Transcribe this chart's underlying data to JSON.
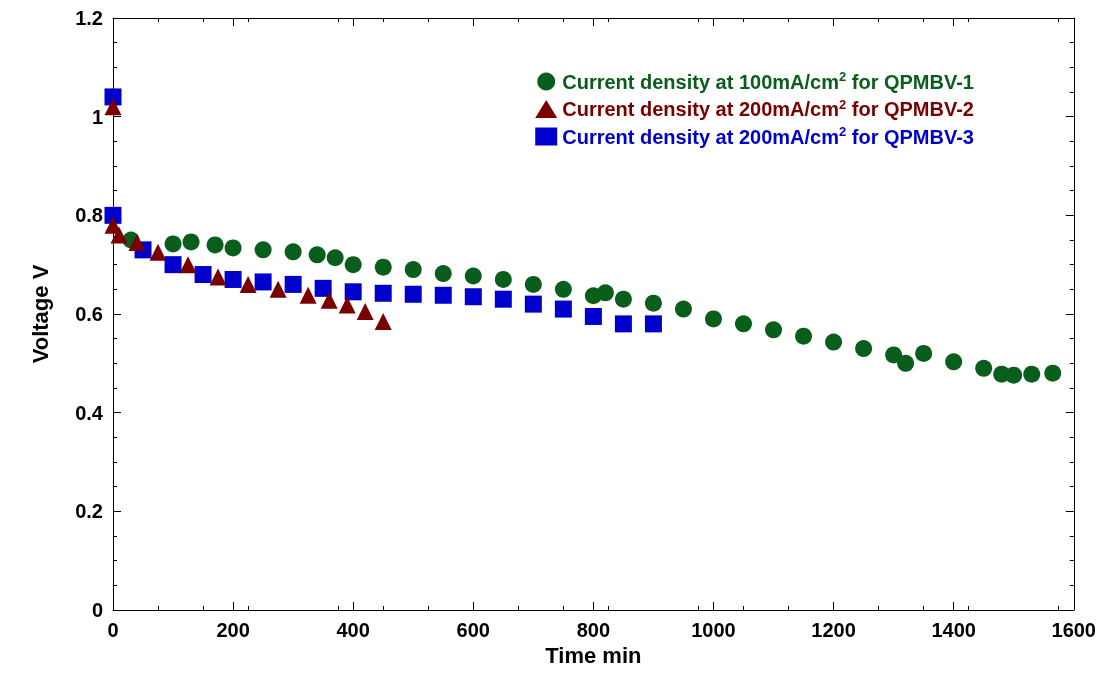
{
  "chart_data": {
    "type": "scatter",
    "xlabel": "Time min",
    "ylabel": "Voltage V",
    "xlim": [
      0,
      1600
    ],
    "ylim": [
      0,
      1.2
    ],
    "xticks": [
      0,
      200,
      400,
      600,
      800,
      1000,
      1200,
      1400,
      1600
    ],
    "yticks": [
      0,
      0.2,
      0.4,
      0.6,
      0.8,
      1,
      1.2
    ],
    "grid": false,
    "legend": "top right",
    "series": [
      {
        "name": "Current density at 100mA/cm$^{2}$ for QPMBV-1",
        "color": "#0a5e1c",
        "marker": "circle",
        "x": [
          30,
          100,
          130,
          170,
          200,
          250,
          300,
          340,
          370,
          400,
          450,
          500,
          550,
          600,
          650,
          700,
          750,
          800,
          820,
          850,
          900,
          950,
          1000,
          1050,
          1100,
          1150,
          1200,
          1250,
          1300,
          1320,
          1350,
          1400,
          1450,
          1480,
          1500,
          1530,
          1565
        ],
        "values": [
          0.75,
          0.742,
          0.746,
          0.74,
          0.734,
          0.73,
          0.726,
          0.72,
          0.714,
          0.7,
          0.695,
          0.69,
          0.682,
          0.677,
          0.67,
          0.66,
          0.65,
          0.637,
          0.643,
          0.63,
          0.622,
          0.61,
          0.59,
          0.58,
          0.568,
          0.555,
          0.543,
          0.53,
          0.517,
          0.5,
          0.52,
          0.503,
          0.49,
          0.478,
          0.476,
          0.478,
          0.48
        ]
      },
      {
        "name": "Current density at 200mA/cm$^{2}$ for QPMBV-2",
        "color": "#7a0000",
        "marker": "triangle",
        "x": [
          0,
          0,
          10,
          40,
          75,
          125,
          175,
          225,
          275,
          325,
          360,
          390,
          420,
          450
        ],
        "values": [
          1.02,
          0.78,
          0.76,
          0.745,
          0.725,
          0.7,
          0.675,
          0.66,
          0.65,
          0.638,
          0.628,
          0.618,
          0.605,
          0.585
        ]
      },
      {
        "name": "Current density at 200mA/cm$^{2}$ for QPMBV-3",
        "color": "#0000cc",
        "marker": "square",
        "x": [
          0,
          0,
          50,
          100,
          150,
          200,
          250,
          300,
          350,
          400,
          450,
          500,
          550,
          600,
          650,
          700,
          750,
          800,
          850,
          900
        ],
        "values": [
          1.04,
          0.8,
          0.73,
          0.7,
          0.68,
          0.67,
          0.665,
          0.66,
          0.652,
          0.645,
          0.642,
          0.64,
          0.638,
          0.635,
          0.63,
          0.62,
          0.61,
          0.595,
          0.58,
          0.58
        ]
      }
    ]
  }
}
